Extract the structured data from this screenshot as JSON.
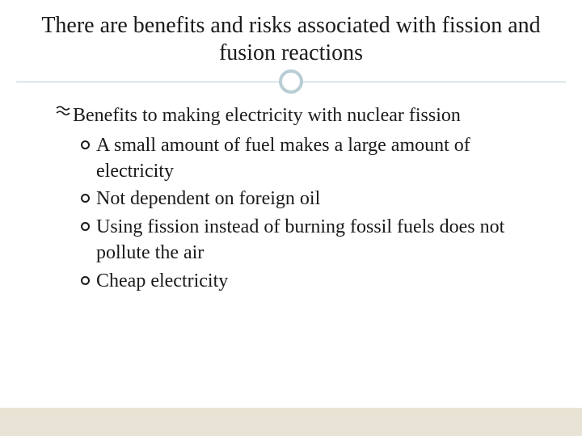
{
  "slide": {
    "title": "There are benefits and risks associated with fission and fusion reactions",
    "main_bullet": "Benefits to making electricity with nuclear fission",
    "sub_bullets": [
      "A small amount of fuel makes a large amount of electricity",
      "Not dependent on foreign oil",
      "Using fission instead of burning fossil fuels does not pollute the air",
      "Cheap electricity"
    ]
  },
  "style": {
    "title_fontsize": 28,
    "body_fontsize": 24,
    "text_color": "#1a1a1a",
    "divider_color": "#b8cdd4",
    "circle_border_color": "#b8cdd4",
    "footer_band_color": "#e9e3d5",
    "background_color": "#ffffff",
    "font_family": "Georgia"
  }
}
